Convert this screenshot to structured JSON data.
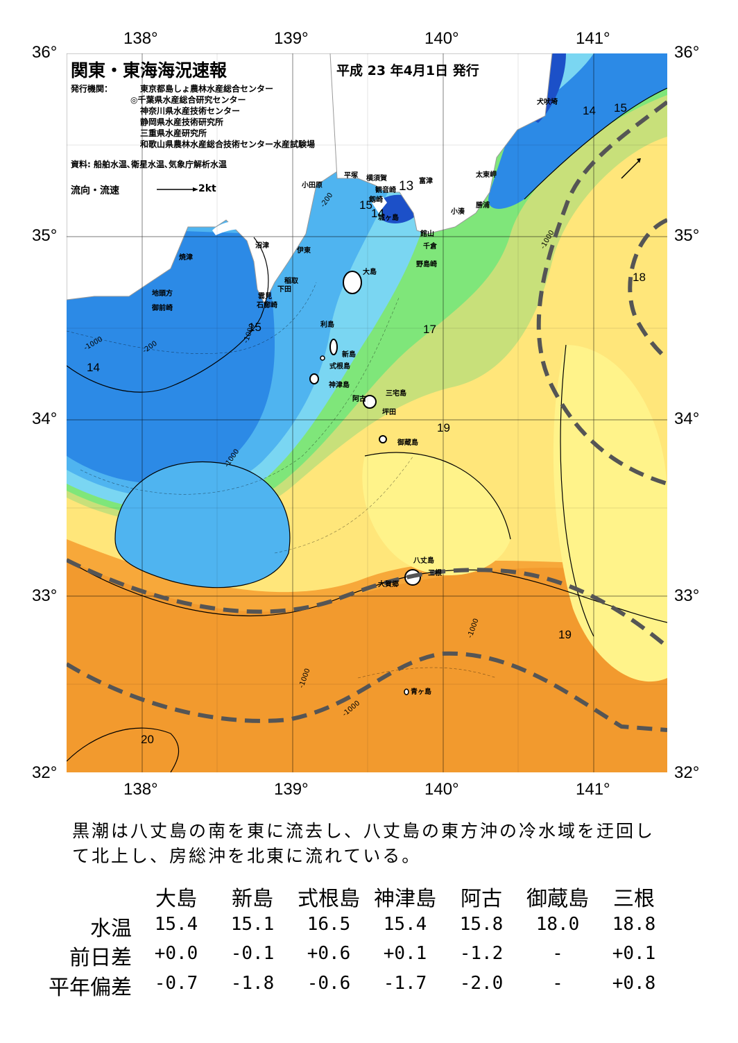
{
  "map": {
    "title": "関東・東海海況速報",
    "issue_date": "平成 23 年4月1日 発行",
    "issuer_label": "発行機関：",
    "issuers": [
      "東京都島しょ農林水産総合センター",
      "◎千葉県水産総合研究センター",
      "神奈川県水産技術センター",
      "静岡県水産技術研究所",
      "三重県水産研究所",
      "和歌山県農林水産総合技術センター水産試験場"
    ],
    "sources": "資料: 船舶水温､衛星水温､気象庁解析水温",
    "legend_label": "流向・流速",
    "legend_value": "2kt",
    "lon_labels": [
      "138°",
      "139°",
      "140°",
      "141°"
    ],
    "lat_labels": [
      "36°",
      "35°",
      "34°",
      "33°",
      "32°"
    ],
    "place_names": [
      "犬吠埼",
      "太東岬",
      "勝浦",
      "小湊",
      "館山",
      "千倉",
      "野島崎",
      "富津",
      "観音崎",
      "剱崎",
      "城ヶ島",
      "横須賀",
      "平塚",
      "小田原",
      "沼津",
      "伊東",
      "焼津",
      "稲取",
      "下田",
      "雲見",
      "石廊崎",
      "地頭方",
      "御前崎",
      "大島",
      "利島",
      "新島",
      "式根島",
      "神津島",
      "三宅島",
      "阿古",
      "坪田",
      "御蔵島",
      "八丈島",
      "三根",
      "大賀郷",
      "青ヶ島"
    ],
    "isotherm_labels": [
      "13",
      "14",
      "15",
      "14",
      "15",
      "15",
      "14",
      "17",
      "18",
      "19",
      "19",
      "20"
    ],
    "depth_labels": [
      "-200",
      "-1000"
    ],
    "colors": {
      "t13": "#1c50c8",
      "t14": "#2c8ae6",
      "t15": "#4fb4f0",
      "t16": "#7ad6f2",
      "t17": "#7fe67a",
      "t18": "#c8e07a",
      "t19": "#ffe67a",
      "t19b": "#fff38a",
      "t20": "#f7a83a",
      "t21": "#f29a2e",
      "land": "#ffffff",
      "kuroshio_axis": "#555555"
    }
  },
  "summary_text": "黒潮は八丈島の南を東に流去し、八丈島の東方沖の冷水域を迂回して北上し、房総沖を北東に流れている。",
  "table": {
    "columns": [
      "大島",
      "新島",
      "式根島",
      "神津島",
      "阿古",
      "御蔵島",
      "三根"
    ],
    "rows": [
      {
        "label": "水温",
        "values": [
          "15.4",
          "15.1",
          "16.5",
          "15.4",
          "15.8",
          "18.0",
          "18.8"
        ]
      },
      {
        "label": "前日差",
        "values": [
          "+0.0",
          "-0.1",
          "+0.6",
          "+0.1",
          "-1.2",
          "-",
          "+0.1"
        ]
      },
      {
        "label": "平年偏差",
        "values": [
          "-0.7",
          "-1.8",
          "-0.6",
          "-1.7",
          "-2.0",
          "-",
          "+0.8"
        ]
      }
    ]
  }
}
